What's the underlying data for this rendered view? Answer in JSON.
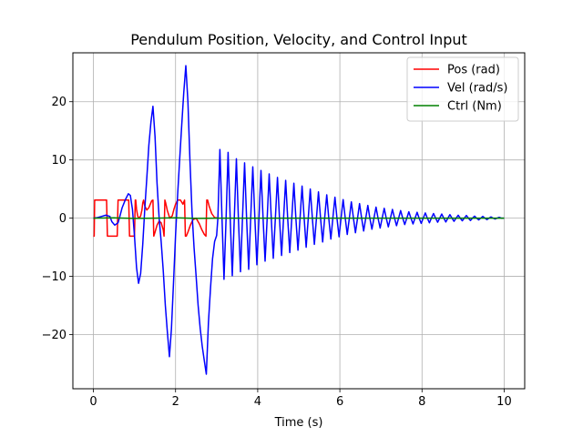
{
  "chart_data": {
    "type": "line",
    "title": "Pendulum Position, Velocity, and Control Input",
    "xlabel": "Time (s)",
    "ylabel": "",
    "xlim": [
      -0.5,
      10.5
    ],
    "ylim": [
      -29.3,
      28.4
    ],
    "xticks": [
      0,
      2,
      4,
      6,
      8,
      10
    ],
    "yticks": [
      -20,
      -10,
      0,
      10,
      20
    ],
    "xtick_labels": [
      "0",
      "2",
      "4",
      "6",
      "8",
      "10"
    ],
    "ytick_labels": [
      "−20",
      "−10",
      "0",
      "10",
      "20"
    ],
    "grid": true,
    "legend_position": "top-right",
    "series": [
      {
        "name": "Pos (rad)",
        "color": "#ff0000",
        "x": [
          0.0,
          0.02,
          0.03,
          0.05,
          0.32,
          0.34,
          0.36,
          0.58,
          0.6,
          0.62,
          0.86,
          0.88,
          0.9,
          1.0,
          1.02,
          1.03,
          1.05,
          1.08,
          1.12,
          1.15,
          1.18,
          1.2,
          1.22,
          1.25,
          1.3,
          1.35,
          1.42,
          1.45,
          1.47,
          1.5,
          1.55,
          1.6,
          1.65,
          1.7,
          1.72,
          1.74,
          1.76,
          1.8,
          1.86,
          1.92,
          1.96,
          2.0,
          2.05,
          2.12,
          2.18,
          2.22,
          2.24,
          2.26,
          2.3,
          2.36,
          2.42,
          2.5,
          2.58,
          2.64,
          2.7,
          2.74,
          2.76,
          2.78,
          2.82,
          2.88,
          2.95,
          3.0,
          3.02
        ],
        "y": [
          -3.1,
          -3.1,
          3.1,
          3.1,
          3.1,
          -3.1,
          -3.1,
          -3.1,
          3.1,
          3.1,
          3.1,
          -3.1,
          -3.1,
          -3.1,
          3.1,
          3.1,
          1.5,
          0.3,
          0.0,
          0.4,
          1.4,
          2.6,
          3.1,
          2.1,
          1.4,
          1.8,
          3.0,
          3.1,
          -3.1,
          -2.4,
          -1.2,
          -0.5,
          -0.8,
          -2.0,
          -3.1,
          3.1,
          2.6,
          1.3,
          0.0,
          0.4,
          1.5,
          2.4,
          3.1,
          3.1,
          2.4,
          3.1,
          -3.1,
          -3.1,
          -2.4,
          -1.2,
          -0.3,
          0.0,
          -1.0,
          -2.0,
          -2.8,
          -3.1,
          3.1,
          3.1,
          2.0,
          0.8,
          0.1,
          0.05,
          0.0
        ]
      },
      {
        "name": "Vel (rad/s)",
        "color": "#0000ff",
        "x": [
          0.0,
          0.1,
          0.2,
          0.3,
          0.4,
          0.45,
          0.52,
          0.6,
          0.65,
          0.7,
          0.78,
          0.85,
          0.9,
          0.95,
          1.0,
          1.05,
          1.1,
          1.15,
          1.2,
          1.25,
          1.3,
          1.35,
          1.4,
          1.45,
          1.5,
          1.55,
          1.6,
          1.65,
          1.7,
          1.75,
          1.8,
          1.85,
          1.9,
          1.95,
          2.0,
          2.05,
          2.1,
          2.15,
          2.2,
          2.25,
          2.3,
          2.35,
          2.4,
          2.45,
          2.5,
          2.55,
          2.6,
          2.65,
          2.7,
          2.75,
          2.8,
          2.85,
          2.9,
          2.95,
          3.0,
          3.03,
          3.08,
          3.13,
          3.18,
          3.23,
          3.28,
          3.33,
          3.38,
          3.43,
          3.48,
          3.53,
          3.58,
          3.63,
          3.68,
          3.73,
          3.78,
          3.83,
          3.88,
          3.93,
          3.98,
          4.03,
          4.08,
          4.13,
          4.18,
          4.23,
          4.28,
          4.33,
          4.38,
          4.43,
          4.48,
          4.53,
          4.58,
          4.63,
          4.68,
          4.73,
          4.78,
          4.83,
          4.88,
          4.93,
          4.98,
          5.03,
          5.08,
          5.13,
          5.18,
          5.23,
          5.28,
          5.33,
          5.38,
          5.43,
          5.48,
          5.53,
          5.58,
          5.63,
          5.68,
          5.73,
          5.78,
          5.83,
          5.88,
          5.93,
          5.98,
          6.03,
          6.08,
          6.13,
          6.18,
          6.23,
          6.28,
          6.33,
          6.38,
          6.43,
          6.48,
          6.53,
          6.58,
          6.63,
          6.68,
          6.73,
          6.78,
          6.83,
          6.88,
          6.93,
          6.98,
          7.03,
          7.08,
          7.13,
          7.18,
          7.23,
          7.28,
          7.33,
          7.38,
          7.43,
          7.48,
          7.53,
          7.58,
          7.63,
          7.68,
          7.73,
          7.78,
          7.83,
          7.88,
          7.93,
          7.98,
          8.03,
          8.08,
          8.13,
          8.18,
          8.23,
          8.28,
          8.33,
          8.38,
          8.43,
          8.48,
          8.53,
          8.58,
          8.63,
          8.68,
          8.73,
          8.78,
          8.83,
          8.88,
          8.93,
          8.98,
          9.03,
          9.08,
          9.13,
          9.18,
          9.23,
          9.28,
          9.33,
          9.38,
          9.43,
          9.48,
          9.53,
          9.58,
          9.63,
          9.68,
          9.73,
          9.78,
          9.83,
          9.88,
          9.93,
          10.0
        ],
        "y": [
          0.0,
          0.1,
          0.3,
          0.5,
          0.3,
          -0.6,
          -1.2,
          -0.8,
          0.5,
          1.8,
          3.2,
          4.2,
          3.9,
          1.5,
          -3.0,
          -8.5,
          -11.2,
          -9.5,
          -4.5,
          1.5,
          7.0,
          12.5,
          16.5,
          19.2,
          14.0,
          6.0,
          0.0,
          -4.0,
          -9.0,
          -15.0,
          -19.5,
          -23.8,
          -19.0,
          -11.0,
          -3.0,
          4.0,
          10.0,
          16.0,
          21.5,
          26.2,
          20.0,
          10.0,
          1.0,
          -5.0,
          -10.0,
          -15.0,
          -19.0,
          -22.0,
          -24.5,
          -26.8,
          -18.0,
          -12.0,
          -7.0,
          -4.0,
          -3.0,
          0.0,
          11.8,
          0.0,
          -10.5,
          0.0,
          11.3,
          0.0,
          -9.9,
          0.0,
          10.2,
          0.0,
          -9.2,
          0.0,
          9.5,
          0.0,
          -8.8,
          0.0,
          8.8,
          0.0,
          -8.0,
          0.0,
          8.2,
          0.0,
          -7.4,
          0.0,
          7.6,
          0.0,
          -6.9,
          0.0,
          7.0,
          0.0,
          -6.4,
          0.0,
          6.5,
          0.0,
          -5.9,
          0.0,
          6.0,
          0.0,
          -5.5,
          0.0,
          5.5,
          0.0,
          -5.0,
          0.0,
          5.0,
          0.0,
          -4.5,
          0.0,
          4.5,
          0.0,
          -4.1,
          0.0,
          4.0,
          0.0,
          -3.6,
          0.0,
          3.6,
          0.0,
          -3.2,
          0.0,
          3.2,
          0.0,
          -2.8,
          0.0,
          2.8,
          0.0,
          -2.5,
          0.0,
          2.5,
          0.0,
          -2.2,
          0.0,
          2.2,
          0.0,
          -1.9,
          0.0,
          1.9,
          0.0,
          -1.7,
          0.0,
          1.7,
          0.0,
          -1.5,
          0.0,
          1.5,
          0.0,
          -1.3,
          0.0,
          1.3,
          0.0,
          -1.1,
          0.0,
          1.1,
          0.0,
          -1.0,
          0.0,
          1.0,
          0.0,
          -0.9,
          0.0,
          0.9,
          0.0,
          -0.8,
          0.0,
          0.8,
          0.0,
          -0.7,
          0.0,
          0.7,
          0.0,
          -0.65,
          0.0,
          0.6,
          0.0,
          -0.55,
          0.0,
          0.5,
          0.0,
          -0.45,
          0.0,
          0.45,
          0.0,
          -0.4,
          0.0,
          0.35,
          0.0,
          -0.3,
          0.0,
          0.3,
          0.0,
          -0.25,
          0.0,
          0.2,
          0.0,
          -0.15,
          0.0,
          0.15,
          0.0,
          0.0
        ]
      },
      {
        "name": "Ctrl (Nm)",
        "color": "#008000",
        "x": [
          0.0,
          0.5,
          1.0,
          1.5,
          2.0,
          2.5,
          3.0,
          4.0,
          5.0,
          6.0,
          7.0,
          8.0,
          9.0,
          10.0
        ],
        "y": [
          0.0,
          0.05,
          -0.05,
          0.0,
          0.05,
          -0.05,
          0.0,
          0.0,
          0.0,
          0.0,
          0.0,
          0.0,
          0.0,
          0.0
        ]
      }
    ]
  }
}
